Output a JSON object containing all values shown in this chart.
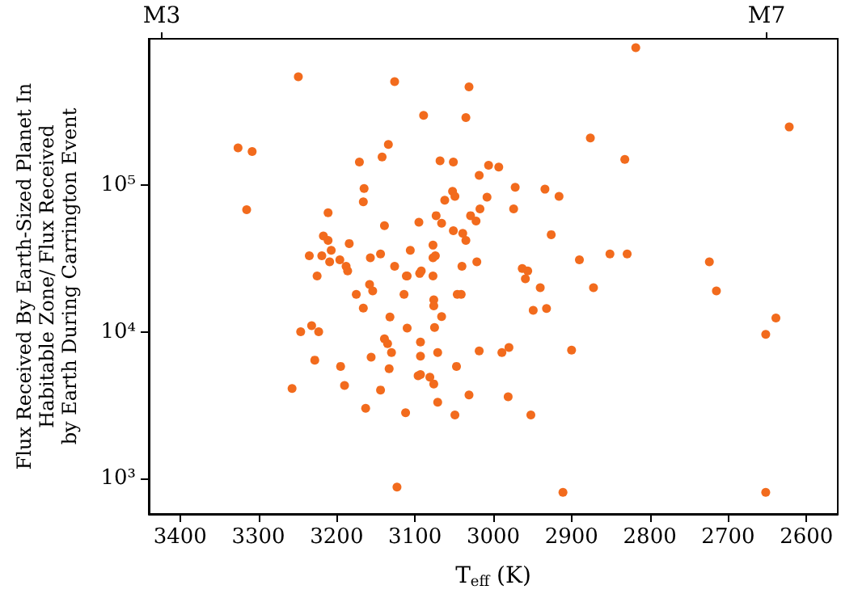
{
  "chart_data": {
    "type": "scatter",
    "xlabel": "T$_{eff}$ (K)",
    "ylabel": "Flux Received By Earth-Sized Planet In\nHabitable Zone/ Flux Received\nby Earth During Carrington Event",
    "color": "#f26b1d",
    "marker": "circle",
    "log": "y",
    "grid": false,
    "annotations": [
      "M3",
      "M7"
    ],
    "xlim": [
      3440,
      2560
    ],
    "xticks": [
      3400,
      3300,
      3200,
      3100,
      3000,
      2900,
      2800,
      2700,
      2600
    ],
    "ylim": [
      570,
      1000000
    ],
    "yticks": [
      {
        "value": 1000,
        "label": "10³"
      },
      {
        "value": 10000,
        "label": "10⁴"
      },
      {
        "value": 100000,
        "label": "10⁵"
      }
    ],
    "x": [
      3249,
      3126,
      3031,
      3089,
      3035,
      2818,
      2622,
      2876,
      2832,
      3134,
      3142,
      3171,
      3068,
      3051,
      3006,
      2993,
      3018,
      3165,
      3166,
      3052,
      3049,
      3062,
      3008,
      2972,
      2934,
      2916,
      3326,
      3308,
      3315,
      3211,
      3139,
      3095,
      3073,
      3066,
      3029,
      3022,
      3017,
      2974,
      3051,
      3039,
      3035,
      2926,
      3217,
      3211,
      3207,
      3184,
      3235,
      3219,
      3209,
      3196,
      3188,
      3186,
      3225,
      3157,
      3144,
      3106,
      3077,
      3077,
      3074,
      3040,
      3021,
      3126,
      3111,
      3110,
      3094,
      3092,
      3077,
      2963,
      2956,
      2959,
      3158,
      3154,
      3175,
      3114,
      3076,
      3076,
      3046,
      3041,
      2940,
      2949,
      2932,
      3166,
      3132,
      3066,
      3246,
      3232,
      3223,
      3110,
      3075,
      3139,
      3135,
      3093,
      3130,
      3093,
      3071,
      3018,
      2989,
      2980,
      2900,
      3228,
      3156,
      3195,
      3133,
      3047,
      3096,
      3093,
      3081,
      3076,
      3190,
      3144,
      3257,
      3163,
      3112,
      3071,
      3049,
      3031,
      2981,
      2952,
      2890,
      2851,
      2829,
      2872,
      2724,
      2715,
      2639,
      2652,
      3123,
      2911,
      2652
    ],
    "values": [
      550000,
      510000,
      470000,
      300000,
      290000,
      870000,
      250000,
      210000,
      150000,
      190000,
      156000,
      144000,
      147000,
      144000,
      137000,
      133000,
      117000,
      95000,
      77000,
      91000,
      84000,
      79000,
      83000,
      97000,
      94000,
      84000,
      180000,
      170000,
      68000,
      65000,
      53000,
      56000,
      62000,
      55000,
      62000,
      57000,
      69000,
      69000,
      49000,
      47000,
      42000,
      46000,
      45000,
      42000,
      36000,
      40000,
      33000,
      33000,
      30000,
      31000,
      28000,
      26000,
      24000,
      32000,
      34000,
      36000,
      39000,
      32000,
      33000,
      28000,
      30000,
      28000,
      24000,
      24000,
      25000,
      26000,
      24000,
      27000,
      26000,
      23000,
      21000,
      19000,
      18000,
      18000,
      16500,
      15000,
      18000,
      18000,
      20000,
      14000,
      14400,
      14500,
      12600,
      12700,
      10000,
      11000,
      10000,
      10600,
      10700,
      8960,
      8300,
      8500,
      7200,
      6800,
      7200,
      7400,
      7200,
      7800,
      7500,
      6400,
      6700,
      5800,
      5600,
      5800,
      5000,
      5100,
      4900,
      4400,
      4300,
      4000,
      4100,
      3000,
      2800,
      3300,
      2700,
      3700,
      3600,
      2700,
      31000,
      34000,
      34000,
      20000,
      30000,
      19000,
      12400,
      9600,
      870,
      800,
      800
    ]
  }
}
